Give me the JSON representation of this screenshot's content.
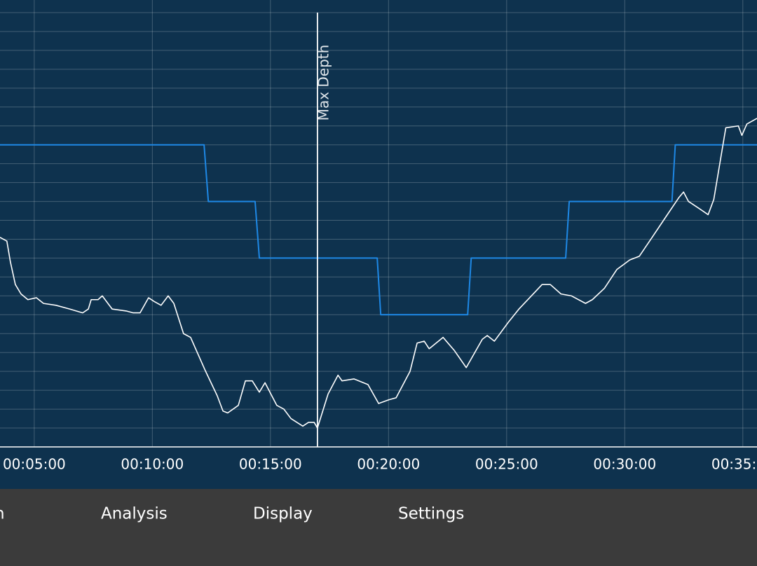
{
  "chart_data": {
    "type": "line",
    "xlim": [
      3.55,
      35.6
    ],
    "xticks": [
      {
        "value": 5,
        "label": "00:05:00"
      },
      {
        "value": 10,
        "label": "00:10:00"
      },
      {
        "value": 15,
        "label": "00:15:00"
      },
      {
        "value": 20,
        "label": "00:20:00"
      },
      {
        "value": 25,
        "label": "00:25:00"
      },
      {
        "value": 30,
        "label": "00:30:00"
      },
      {
        "value": 35,
        "label": "00:35:00"
      }
    ],
    "ylim": [
      0,
      23
    ],
    "invert_y": true,
    "yticks": [
      0,
      1,
      2,
      3,
      4,
      5,
      6,
      7,
      8,
      9,
      10,
      11,
      12,
      13,
      14,
      15,
      16,
      17,
      18,
      19,
      20,
      21,
      22,
      23
    ],
    "grid": true,
    "series": [
      {
        "color": "#1e88e5",
        "x": [
          3.55,
          12.19,
          12.37,
          14.35,
          14.53,
          19.52,
          19.67,
          23.35,
          23.5,
          27.5,
          27.65,
          32.0,
          32.14,
          35.6
        ],
        "values": [
          7,
          7,
          10,
          10,
          13,
          13,
          16,
          16,
          13,
          13,
          10,
          10,
          7,
          7
        ]
      },
      {
        "color": "#ffffff",
        "x": [
          3.55,
          3.84,
          3.99,
          4.2,
          4.44,
          4.73,
          5.09,
          5.39,
          5.92,
          6.51,
          7.05,
          7.29,
          7.41,
          7.7,
          7.88,
          8.3,
          8.89,
          9.19,
          9.48,
          9.84,
          10.08,
          10.37,
          10.67,
          10.91,
          11.32,
          11.62,
          12.22,
          12.75,
          12.99,
          13.19,
          13.64,
          13.94,
          14.23,
          14.53,
          14.77,
          15.27,
          15.57,
          15.87,
          16.37,
          16.61,
          16.85,
          16.99,
          17.44,
          17.86,
          18.03,
          18.54,
          19.13,
          19.58,
          20.02,
          20.32,
          20.91,
          21.21,
          21.51,
          21.72,
          22.31,
          22.79,
          23.29,
          23.97,
          24.18,
          24.48,
          25.07,
          25.52,
          26.05,
          26.5,
          26.85,
          27.3,
          27.74,
          28.34,
          28.63,
          29.14,
          29.67,
          30.21,
          30.62,
          31.16,
          31.75,
          32.29,
          32.49,
          32.7,
          33.18,
          33.53,
          33.77,
          34.28,
          34.81,
          34.96,
          35.17,
          35.6
        ],
        "values": [
          11.9,
          12.1,
          13.2,
          14.4,
          14.9,
          15.2,
          15.1,
          15.4,
          15.5,
          15.7,
          15.9,
          15.7,
          15.2,
          15.2,
          15.0,
          15.7,
          15.8,
          15.9,
          15.9,
          15.1,
          15.3,
          15.5,
          15.0,
          15.4,
          17.0,
          17.2,
          18.9,
          20.3,
          21.1,
          21.2,
          20.8,
          19.5,
          19.5,
          20.1,
          19.6,
          20.8,
          21.0,
          21.5,
          21.9,
          21.7,
          21.7,
          22.0,
          20.2,
          19.2,
          19.5,
          19.4,
          19.7,
          20.7,
          20.5,
          20.4,
          19.0,
          17.5,
          17.4,
          17.8,
          17.2,
          17.9,
          18.8,
          17.3,
          17.1,
          17.4,
          16.4,
          15.7,
          15.0,
          14.4,
          14.4,
          14.9,
          15.0,
          15.4,
          15.2,
          14.6,
          13.6,
          13.1,
          12.9,
          11.9,
          10.8,
          9.8,
          9.5,
          10.0,
          10.4,
          10.7,
          9.9,
          6.1,
          6.0,
          6.5,
          5.9,
          5.6
        ]
      }
    ],
    "annotations": [
      {
        "x": 16.99,
        "label": "Max Depth"
      }
    ]
  },
  "menu": [
    "n",
    "Analysis",
    "Display",
    "Settings"
  ]
}
